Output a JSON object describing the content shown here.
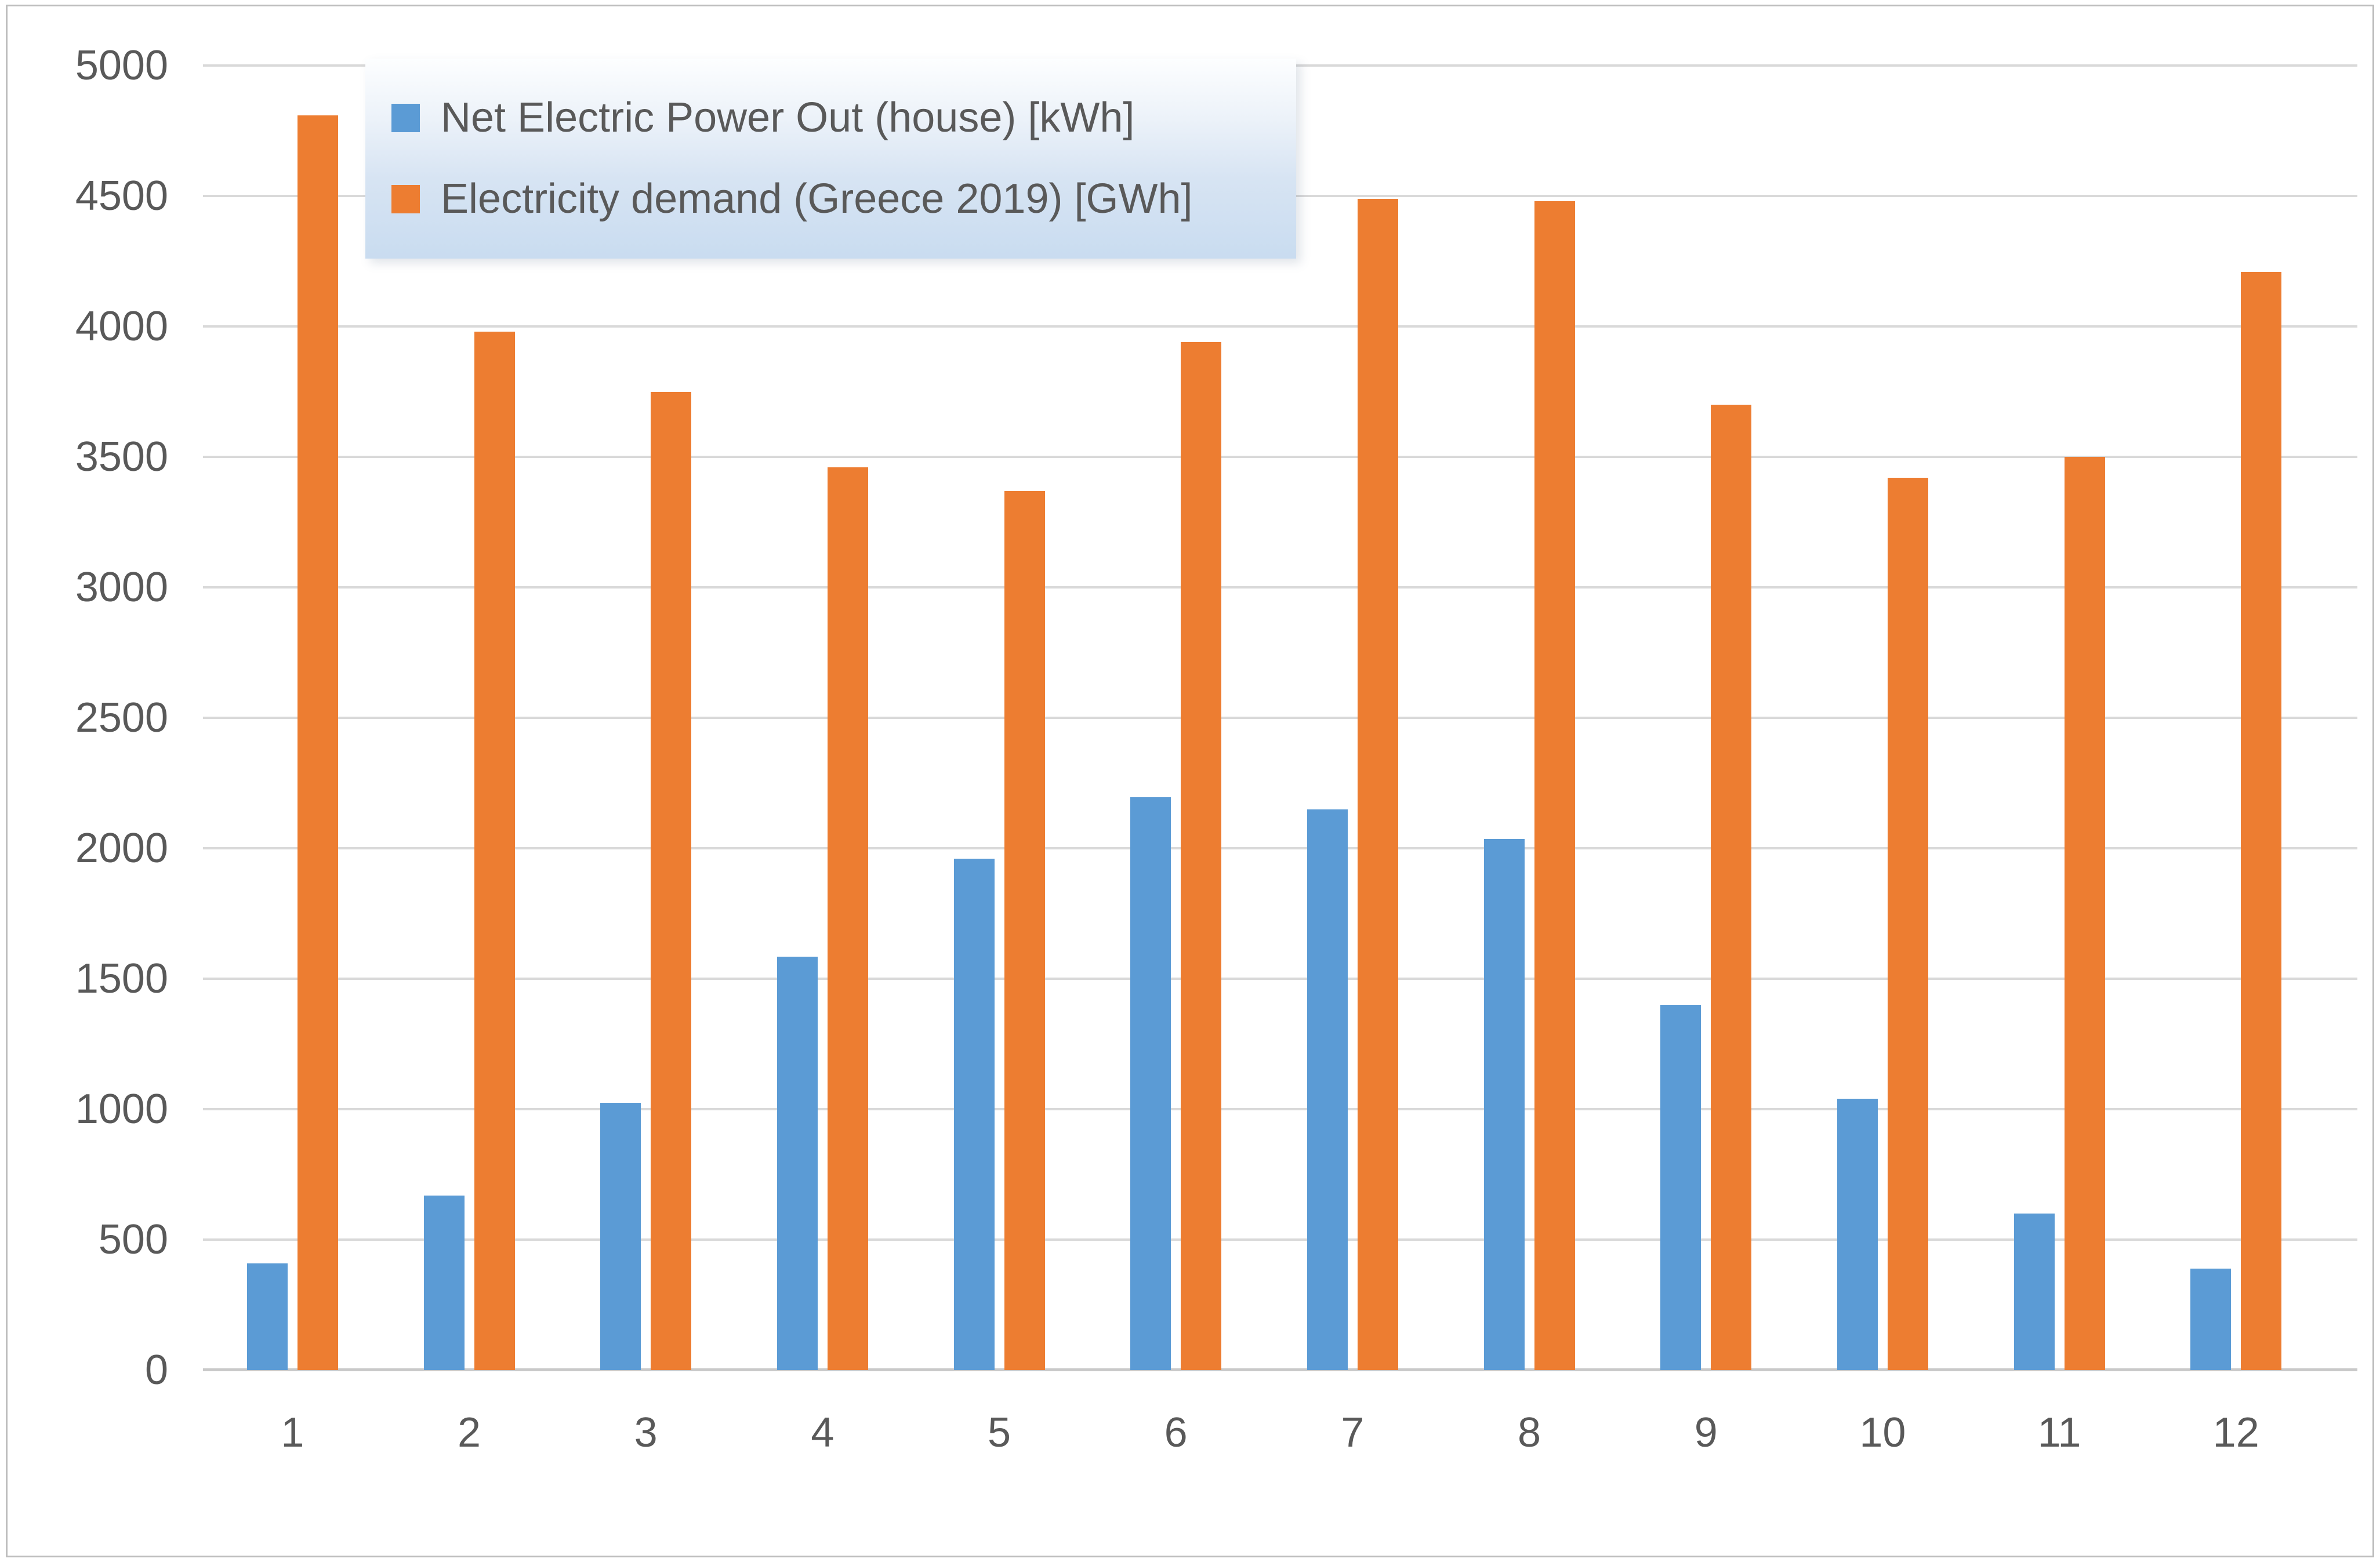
{
  "chart_data": {
    "type": "bar",
    "title": "",
    "xlabel": "",
    "ylabel": "",
    "categories": [
      "1",
      "2",
      "3",
      "4",
      "5",
      "6",
      "7",
      "8",
      "9",
      "10",
      "11",
      "12"
    ],
    "series": [
      {
        "name": "Net Electric Power Out (house) [kWh]",
        "color": "#5B9BD5",
        "values": [
          410,
          670,
          1025,
          1585,
          1960,
          2195,
          2150,
          2035,
          1400,
          1040,
          600,
          390
        ]
      },
      {
        "name": "Electricity demand (Greece 2019) [GWh]",
        "color": "#ED7D31",
        "values": [
          4810,
          3980,
          3750,
          3460,
          3370,
          3940,
          4490,
          4480,
          3700,
          3420,
          3500,
          4210
        ]
      }
    ],
    "ylim": [
      0,
      5000
    ],
    "ytick_step": 500,
    "yticks": [
      "0",
      "500",
      "1000",
      "1500",
      "2000",
      "2500",
      "3000",
      "3500",
      "4000",
      "4500",
      "5000"
    ],
    "grid": true,
    "legend_position": "top-left"
  },
  "colors": {
    "series_blue": "#5B9BD5",
    "series_orange": "#ED7D31",
    "axis_text": "#595959",
    "gridline": "#D9D9D9",
    "frame_border": "#BDBDBD",
    "legend_gradient_top": "#FDFEFF",
    "legend_gradient_bottom": "#C9DCF0"
  }
}
